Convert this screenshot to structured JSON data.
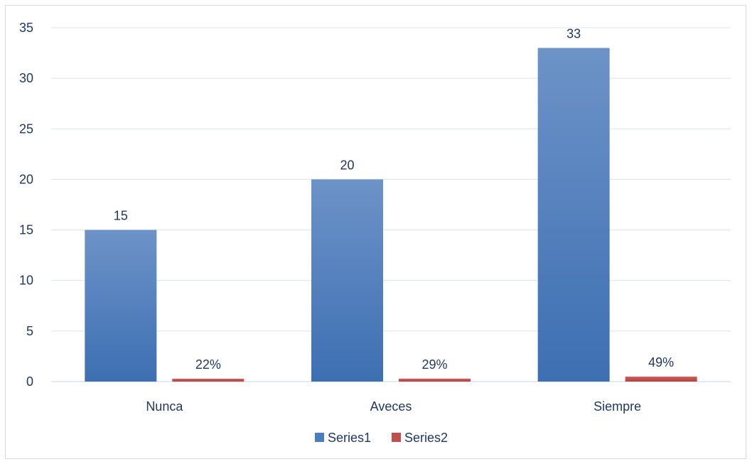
{
  "chart_data": {
    "type": "bar",
    "categories": [
      "Nunca",
      "Aveces",
      "Siempre"
    ],
    "series": [
      {
        "name": "Series1",
        "values": [
          15,
          20,
          33
        ],
        "labels": [
          "15",
          "20",
          "33"
        ],
        "color": "#4a7ebf"
      },
      {
        "name": "Series2",
        "values": [
          0.22,
          0.29,
          0.49
        ],
        "labels": [
          "22%",
          "29%",
          "49%"
        ],
        "color": "#c0504d"
      }
    ],
    "ylim": [
      0,
      35
    ],
    "yticks": [
      "0",
      "5",
      "10",
      "15",
      "20",
      "25",
      "30",
      "35"
    ],
    "grid": true,
    "legend_position": "bottom"
  }
}
